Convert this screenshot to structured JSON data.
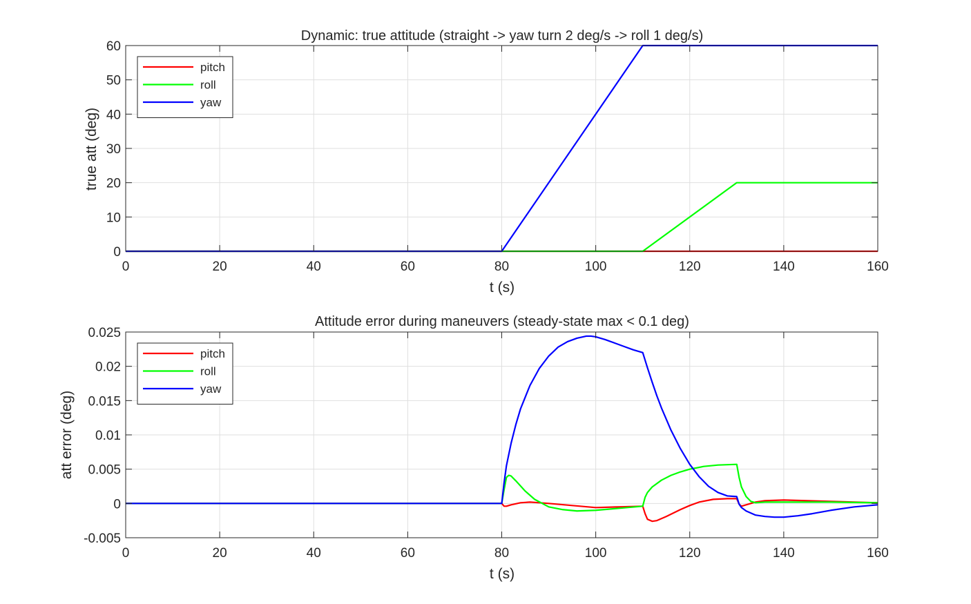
{
  "chart_data": [
    {
      "type": "line",
      "title": "Dynamic: true attitude (straight -> yaw turn 2 deg/s -> roll 1 deg/s)",
      "xlabel": "t (s)",
      "ylabel": "true att (deg)",
      "xlim": [
        0,
        160
      ],
      "ylim": [
        0,
        60
      ],
      "xticks": [
        0,
        20,
        40,
        60,
        80,
        100,
        120,
        140,
        160
      ],
      "xtick_labels": [
        "0",
        "20",
        "40",
        "60",
        "80",
        "100",
        "120",
        "140",
        "160"
      ],
      "yticks": [
        0,
        10,
        20,
        30,
        40,
        50,
        60
      ],
      "ytick_labels": [
        "0",
        "10",
        "20",
        "30",
        "40",
        "50",
        "60"
      ],
      "grid": true,
      "legend_position": "top-left",
      "series": [
        {
          "name": "pitch",
          "color": "#ff0000",
          "x": [
            0,
            160
          ],
          "y": [
            0,
            0
          ]
        },
        {
          "name": "roll",
          "color": "#00ff00",
          "x": [
            0,
            110,
            130,
            160
          ],
          "y": [
            0,
            0,
            20,
            20
          ]
        },
        {
          "name": "yaw",
          "color": "#0000ff",
          "x": [
            0,
            80,
            110,
            160
          ],
          "y": [
            0,
            0,
            60,
            60
          ]
        }
      ]
    },
    {
      "type": "line",
      "title": "Attitude error during maneuvers (steady-state max < 0.1 deg)",
      "xlabel": "t (s)",
      "ylabel": "att error (deg)",
      "xlim": [
        0,
        160
      ],
      "ylim": [
        -0.005,
        0.025
      ],
      "xticks": [
        0,
        20,
        40,
        60,
        80,
        100,
        120,
        140,
        160
      ],
      "xtick_labels": [
        "0",
        "20",
        "40",
        "60",
        "80",
        "100",
        "120",
        "140",
        "160"
      ],
      "yticks": [
        -0.005,
        0,
        0.005,
        0.01,
        0.015,
        0.02,
        0.025
      ],
      "ytick_labels": [
        "-0.005",
        "0",
        "0.005",
        "0.01",
        "0.015",
        "0.02",
        "0.025"
      ],
      "grid": true,
      "legend_position": "top-left",
      "series": [
        {
          "name": "pitch",
          "color": "#ff0000",
          "x": [
            0,
            80,
            80.5,
            81,
            82,
            84,
            86,
            88,
            90,
            95,
            100,
            105,
            110,
            110.5,
            111,
            112,
            113,
            115,
            118,
            120,
            122,
            125,
            128,
            130,
            130.5,
            131,
            132,
            134,
            136,
            140,
            145,
            150,
            155,
            160
          ],
          "y": [
            0,
            0,
            -0.0004,
            -0.0004,
            -0.0002,
            0.0001,
            0.0002,
            0.0001,
            0,
            -0.0003,
            -0.0006,
            -0.0005,
            -0.0004,
            -0.0015,
            -0.0023,
            -0.0026,
            -0.0025,
            -0.0019,
            -0.0009,
            -0.0003,
            0.0002,
            0.0006,
            0.0007,
            0.0007,
            -0.0001,
            -0.0004,
            -0.0002,
            0.0002,
            0.0004,
            0.0005,
            0.0004,
            0.0003,
            0.0002,
            0.0001
          ]
        },
        {
          "name": "roll",
          "color": "#00ff00",
          "x": [
            0,
            80,
            80.5,
            81,
            81.5,
            82,
            83,
            85,
            87,
            90,
            93,
            96,
            100,
            105,
            110,
            110.5,
            111,
            112,
            114,
            116,
            118,
            120,
            123,
            126,
            130,
            130.5,
            131,
            132,
            133,
            134,
            136,
            140,
            150,
            160
          ],
          "y": [
            0,
            0,
            0.002,
            0.0038,
            0.0041,
            0.004,
            0.0033,
            0.0018,
            0.0006,
            -0.0005,
            -0.0009,
            -0.0011,
            -0.001,
            -0.0007,
            -0.0004,
            0.0009,
            0.0016,
            0.0024,
            0.0034,
            0.0041,
            0.0046,
            0.005,
            0.0054,
            0.0056,
            0.0057,
            0.0038,
            0.0024,
            0.001,
            0.0003,
            0.0001,
            0.0002,
            0.0002,
            0.0002,
            0.0001
          ]
        },
        {
          "name": "yaw",
          "color": "#0000ff",
          "x": [
            0,
            80,
            80.5,
            81,
            82,
            83,
            84,
            86,
            88,
            90,
            92,
            94,
            96,
            98,
            99,
            100,
            102,
            104,
            106,
            108,
            110,
            111,
            112,
            113,
            114,
            116,
            118,
            120,
            122,
            124,
            126,
            128,
            130,
            130.5,
            131,
            132,
            134,
            136,
            138,
            140,
            143,
            146,
            150,
            155,
            160
          ],
          "y": [
            0,
            0,
            0.003,
            0.0055,
            0.0088,
            0.0115,
            0.0138,
            0.0172,
            0.0197,
            0.0215,
            0.0228,
            0.0236,
            0.0241,
            0.0244,
            0.0244,
            0.0243,
            0.0239,
            0.0234,
            0.0229,
            0.0224,
            0.022,
            0.0198,
            0.0177,
            0.0157,
            0.0139,
            0.0107,
            0.008,
            0.0057,
            0.0039,
            0.0025,
            0.0016,
            0.0011,
            0.001,
            -0.0001,
            -0.0006,
            -0.0011,
            -0.0017,
            -0.0019,
            -0.002,
            -0.002,
            -0.0018,
            -0.0015,
            -0.001,
            -0.0005,
            -0.0002
          ]
        }
      ]
    }
  ]
}
